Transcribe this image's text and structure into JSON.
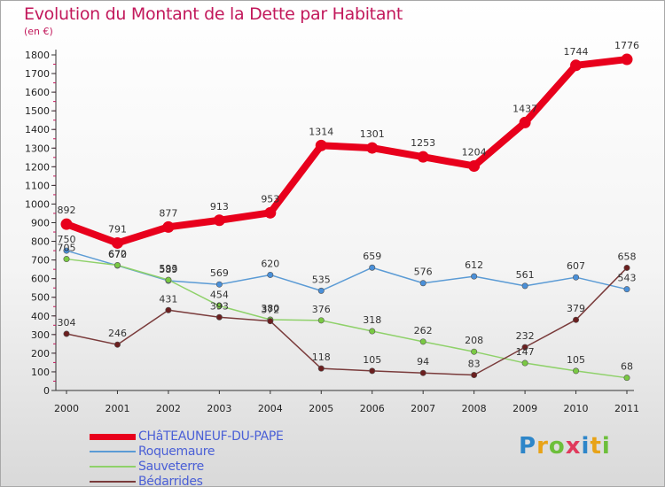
{
  "title": "Evolution du Montant de la Dette par Habitant",
  "subtitle": "(en €)",
  "brand": {
    "text": "Proxiti",
    "letter_colors": [
      "#2e86c9",
      "#e8a317",
      "#6dbf3b",
      "#e03a5c",
      "#2e86c9",
      "#e8a317",
      "#6dbf3b"
    ]
  },
  "chart_data": {
    "type": "line",
    "title": "Evolution du Montant de la Dette par Habitant",
    "subtitle": "(en €)",
    "x": [
      "2000",
      "2001",
      "2002",
      "2003",
      "2004",
      "2005",
      "2006",
      "2007",
      "2008",
      "2009",
      "2010",
      "2011"
    ],
    "ylim": [
      0,
      1800
    ],
    "yticks": [
      0,
      100,
      200,
      300,
      400,
      500,
      600,
      700,
      800,
      900,
      1000,
      1100,
      1200,
      1300,
      1400,
      1500,
      1600,
      1700,
      1800
    ],
    "grid": false,
    "legend_position": "bottom-left",
    "series": [
      {
        "name": "CHâTEAUNEUF-DU-PAPE",
        "color": "#e8001c",
        "emphasis": true,
        "values": [
          892,
          791,
          877,
          913,
          953,
          1314,
          1301,
          1253,
          1204,
          1437,
          1744,
          1776
        ]
      },
      {
        "name": "Roquemaure",
        "color": "#5b9bd5",
        "marker_color": "#4a90d9",
        "values": [
          750,
          670,
          589,
          569,
          620,
          535,
          659,
          576,
          612,
          561,
          607,
          543
        ]
      },
      {
        "name": "Sauveterre",
        "color": "#8fd16a",
        "marker_color": "#7ac943",
        "values": [
          705,
          672,
          593,
          454,
          380,
          376,
          318,
          262,
          208,
          147,
          105,
          68
        ]
      },
      {
        "name": "Bédarrides",
        "color": "#7a3b3b",
        "marker_color": "#6b1f1f",
        "values": [
          304,
          246,
          431,
          393,
          372,
          118,
          105,
          94,
          83,
          232,
          379,
          658
        ]
      }
    ]
  }
}
